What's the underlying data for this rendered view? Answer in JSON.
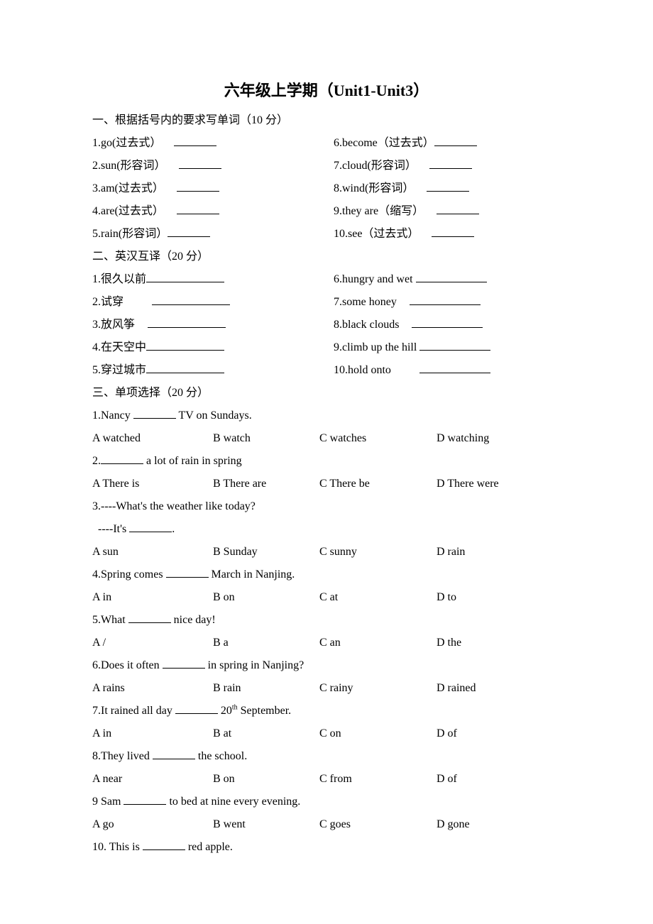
{
  "title": "六年级上学期（Unit1-Unit3）",
  "sec1": {
    "heading": "一、根据括号内的要求写单词（10 分）",
    "left": [
      "1.go(过去式）",
      "2.sun(形容词）",
      "3.am(过去式）",
      "4.are(过去式）",
      "5.rain(形容词）"
    ],
    "right": [
      "6.become（过去式）",
      "7.cloud(形容词）",
      "8.wind(形容词）",
      "9.they are（缩写）",
      "10.see（过去式）"
    ]
  },
  "sec2": {
    "heading": "二、英汉互译（20 分）",
    "left": [
      "1.很久以前",
      "2.试穿",
      "3.放风筝",
      "4.在天空中",
      "5.穿过城市"
    ],
    "right": [
      "6.hungry and wet",
      "7.some honey",
      "8.black clouds",
      "9.climb up the hill",
      "10.hold onto"
    ]
  },
  "sec3": {
    "heading": "三、单项选择（20 分）",
    "q1": {
      "stem_a": "1.Nancy ",
      "stem_b": " TV on Sundays.",
      "A": "A watched",
      "B": "B watch",
      "C": "C watches",
      "D": "D watching"
    },
    "q2": {
      "stem_a": "2.",
      "stem_b": " a lot of rain in spring",
      "A": "A There is",
      "B": "B There are",
      "C": "C There be",
      "D": "D There were"
    },
    "q3": {
      "stem1": "3.----What's the weather like today?",
      "stem2a": "  ----It's ",
      "stem2b": ".",
      "A": "A sun",
      "B": "B Sunday",
      "C": "C sunny",
      "D": "D rain"
    },
    "q4": {
      "stem_a": "4.Spring comes ",
      "stem_b": " March in Nanjing.",
      "A": "A in",
      "B": "B on",
      "C": "C at",
      "D": "D to"
    },
    "q5": {
      "stem_a": "5.What ",
      "stem_b": " nice day!",
      "A": "A   /",
      "B": "B a",
      "C": "C an",
      "D": "D the"
    },
    "q6": {
      "stem_a": "6.Does it often ",
      "stem_b": " in spring in Nanjing?",
      "A": "A rains",
      "B": "B rain",
      "C": "C rainy",
      "D": "D rained"
    },
    "q7": {
      "stem_a": "7.It rained all day ",
      "stem_b": " 20",
      "sup": "th",
      "stem_c": " September.",
      "A": "A in",
      "B": "B at",
      "C": "C on",
      "D": "D of"
    },
    "q8": {
      "stem_a": "8.They lived ",
      "stem_b": " the school.",
      "A": "A near",
      "B": "B on",
      "C": "C from",
      "D": "D of"
    },
    "q9": {
      "stem_a": "9 Sam ",
      "stem_b": " to bed at nine every evening.",
      "A": "A go",
      "B": "B went",
      "C": "C goes",
      "D": "D gone"
    },
    "q10": {
      "stem_a": "10. This is ",
      "stem_b": " red apple."
    }
  }
}
